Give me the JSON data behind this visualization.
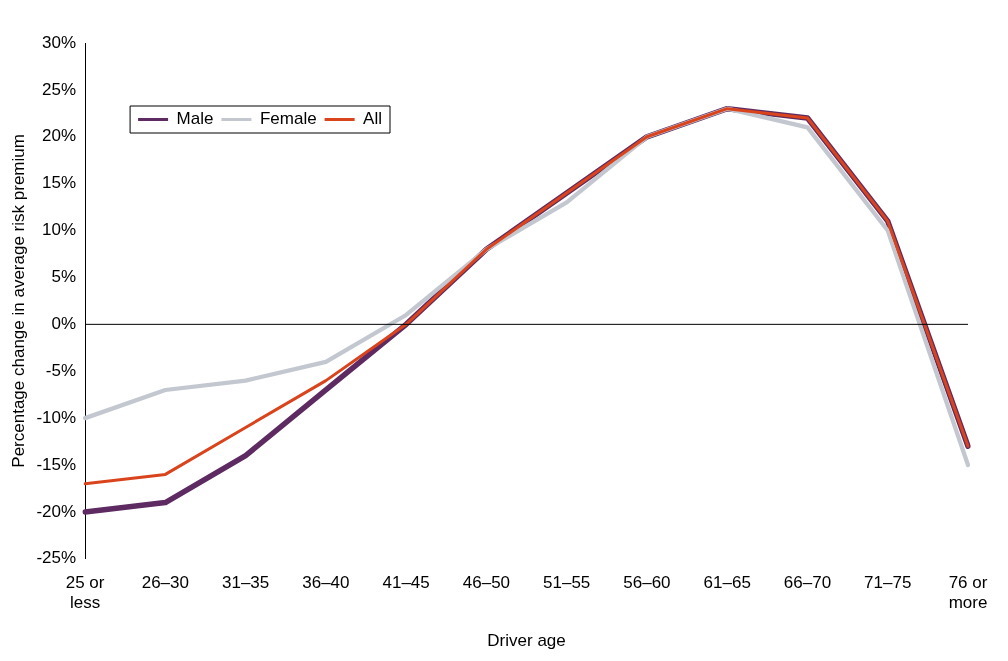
{
  "chart_data": {
    "type": "line",
    "xlabel": "Driver age",
    "ylabel": "Percentage change in average risk premium",
    "categories": [
      "25 or less",
      "26–30",
      "31–35",
      "36–40",
      "41–45",
      "46–50",
      "51–55",
      "56–60",
      "61–65",
      "66–70",
      "71–75",
      "76 or more"
    ],
    "series": [
      {
        "name": "Male",
        "color": "#5e2a62",
        "values": [
          -20,
          -19,
          -14,
          -7,
          0,
          8,
          14,
          20,
          23,
          22,
          11,
          -13
        ]
      },
      {
        "name": "Female",
        "color": "#c3c7cf",
        "values": [
          -10,
          -7,
          -6,
          -4,
          1,
          8,
          13,
          20,
          23,
          21,
          10,
          -15
        ]
      },
      {
        "name": "All",
        "color": "#d9441c",
        "values": [
          -17,
          -16,
          -11,
          -6,
          0,
          8,
          14,
          20,
          23,
          22,
          11,
          -13
        ]
      }
    ],
    "ylim": [
      -25,
      30
    ],
    "yticks": [
      {
        "value": -25,
        "label": "-25%"
      },
      {
        "value": -20,
        "label": "-20%"
      },
      {
        "value": -15,
        "label": "-15%"
      },
      {
        "value": -10,
        "label": "-10%"
      },
      {
        "value": -5,
        "label": "-5%"
      },
      {
        "value": 0,
        "label": "0%"
      },
      {
        "value": 5,
        "label": "5%"
      },
      {
        "value": 10,
        "label": "10%"
      },
      {
        "value": 15,
        "label": "15%"
      },
      {
        "value": 20,
        "label": "20%"
      },
      {
        "value": 25,
        "label": "25%"
      },
      {
        "value": 30,
        "label": "30%"
      }
    ],
    "ref_lines": [
      {
        "axis": "y",
        "value": 0,
        "color": "#000000"
      }
    ],
    "legend": "top left",
    "marker": "none",
    "line_style": "solid",
    "grid": false
  }
}
